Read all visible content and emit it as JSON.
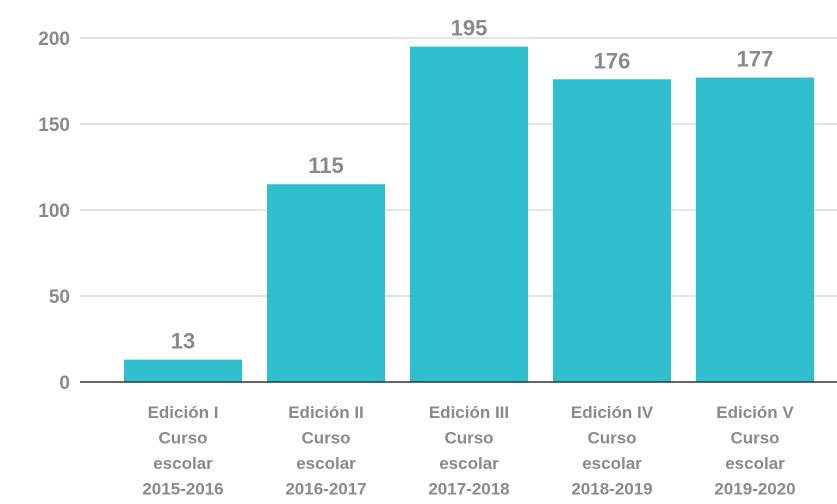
{
  "chart_data": {
    "type": "bar",
    "categories": [
      [
        "Edición I",
        "Curso",
        "escolar",
        "2015-2016"
      ],
      [
        "Edición II",
        "Curso",
        "escolar",
        "2016-2017"
      ],
      [
        "Edición III",
        "Curso",
        "escolar",
        "2017-2018"
      ],
      [
        "Edición IV",
        "Curso",
        "escolar",
        "2018-2019"
      ],
      [
        "Edición V",
        "Curso",
        "escolar",
        "2019-2020"
      ]
    ],
    "values": [
      13,
      115,
      195,
      176,
      177
    ],
    "data_labels": [
      "13",
      "115",
      "195",
      "176",
      "177"
    ],
    "yticks": [
      0,
      50,
      100,
      150,
      200
    ],
    "ylim": [
      0,
      200
    ],
    "grid": true,
    "bar_color": "#2fbfcf",
    "grid_color": "#c8c8c8",
    "axis_color": "#333333",
    "label_color": "#8a8a8a"
  }
}
